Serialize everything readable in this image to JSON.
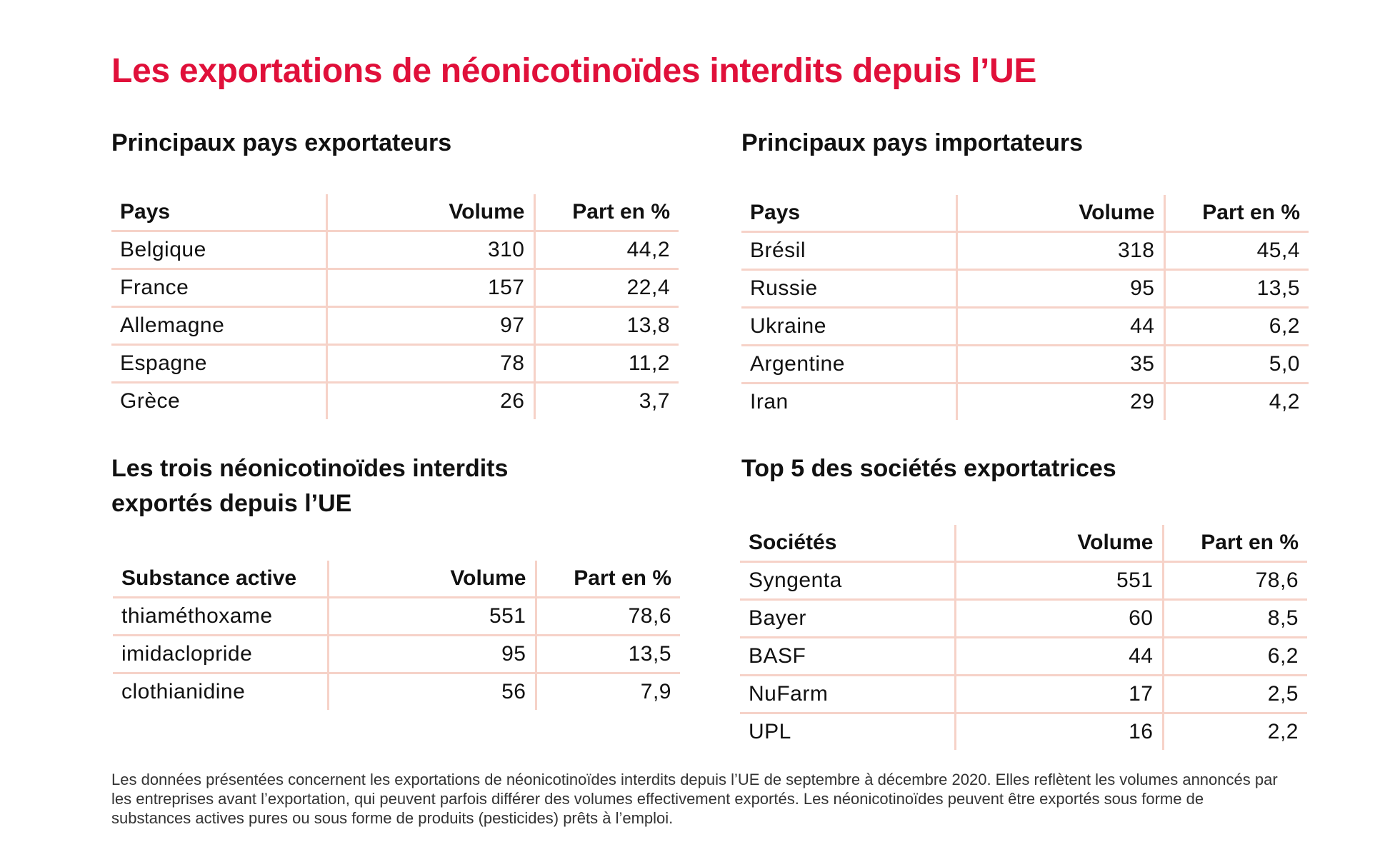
{
  "title": "Les exportations de néonicotinoïdes interdits depuis l’UE",
  "exporters": {
    "heading": "Principaux pays exportateurs",
    "columns": [
      "Pays",
      "Volume",
      "Part en %"
    ],
    "rows": [
      [
        "Belgique",
        "310",
        "44,2"
      ],
      [
        "France",
        "157",
        "22,4"
      ],
      [
        "Allemagne",
        "97",
        "13,8"
      ],
      [
        "Espagne",
        "78",
        "11,2"
      ],
      [
        "Grèce",
        "26",
        "3,7"
      ]
    ]
  },
  "importers": {
    "heading": "Principaux pays importateurs",
    "columns": [
      "Pays",
      "Volume",
      "Part en %"
    ],
    "rows": [
      [
        "Brésil",
        "318",
        "45,4"
      ],
      [
        "Russie",
        "95",
        "13,5"
      ],
      [
        "Ukraine",
        "44",
        "6,2"
      ],
      [
        "Argentine",
        "35",
        "5,0"
      ],
      [
        "Iran",
        "29",
        "4,2"
      ]
    ]
  },
  "substances": {
    "heading_line1": "Les trois néonicotinoïdes interdits",
    "heading_line2": "exportés depuis l’UE",
    "columns": [
      "Substance active",
      "Volume",
      "Part en %"
    ],
    "rows": [
      [
        "thiaméthoxame",
        "551",
        "78,6"
      ],
      [
        "imidaclopride",
        "95",
        "13,5"
      ],
      [
        "clothianidine",
        "56",
        "7,9"
      ]
    ]
  },
  "companies": {
    "heading": "Top 5 des sociétés exportatrices",
    "columns": [
      "Sociétés",
      "Volume",
      "Part en %"
    ],
    "rows": [
      [
        "Syngenta",
        "551",
        "78,6"
      ],
      [
        "Bayer",
        "60",
        "8,5"
      ],
      [
        "BASF",
        "44",
        "6,2"
      ],
      [
        "NuFarm",
        "17",
        "2,5"
      ],
      [
        "UPL",
        "16",
        "2,2"
      ]
    ]
  },
  "footnote": "Les données présentées concernent les exportations de néonicotinoïdes interdits depuis l’UE de septembre à décembre 2020. Elles reflètent les volumes annoncés par les entreprises avant l’exportation, qui peuvent parfois différer des volumes effectivement exportés. Les néonicotinoïdes peuvent être exportés sous forme de substances actives pures ou sous forme de produits (pesticides) prêts à l’emploi.",
  "colors": {
    "title": "#e0103a",
    "table_rule": "#f6d2c8",
    "text": "#111111"
  }
}
